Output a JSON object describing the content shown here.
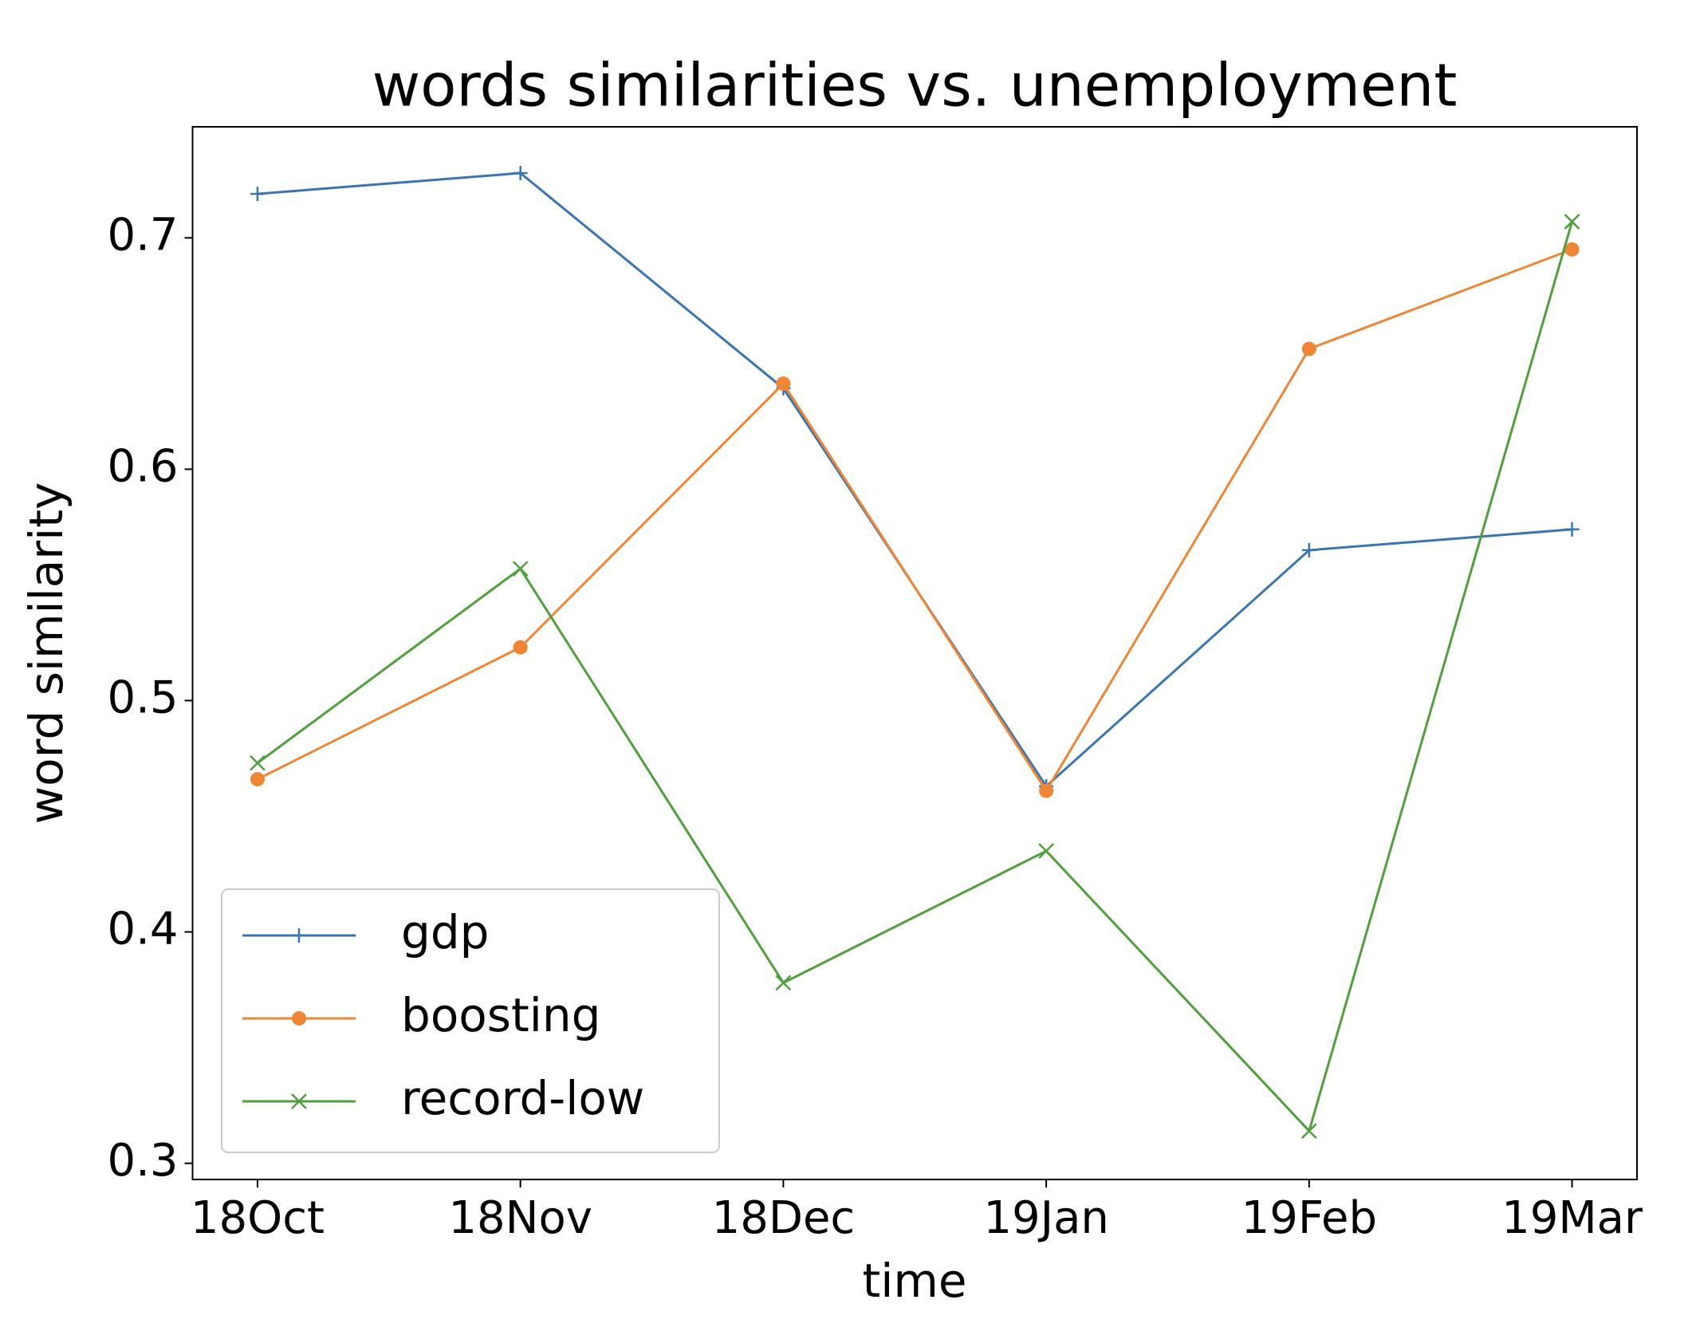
{
  "chart_data": {
    "type": "line",
    "title": "words similarities vs. unemployment",
    "x_label": "time",
    "y_label": "word similarity",
    "categories": [
      "18Oct",
      "18Nov",
      "18Dec",
      "19Jan",
      "19Feb",
      "19Mar"
    ],
    "series": [
      {
        "name": "gdp",
        "color": "#3b75af",
        "marker": "plus",
        "values": [
          0.719,
          0.728,
          0.635,
          0.463,
          0.565,
          0.574
        ]
      },
      {
        "name": "boosting",
        "color": "#ef8636",
        "marker": "circle",
        "values": [
          0.466,
          0.523,
          0.637,
          0.461,
          0.652,
          0.695
        ]
      },
      {
        "name": "record-low",
        "color": "#519e3e",
        "marker": "x",
        "values": [
          0.473,
          0.557,
          0.378,
          0.435,
          0.314,
          0.707
        ]
      }
    ],
    "ylim": [
      0.293,
      0.748
    ],
    "yticks": [
      0.3,
      0.4,
      0.5,
      0.6,
      0.7
    ],
    "legend": "lower left",
    "grid": false
  }
}
